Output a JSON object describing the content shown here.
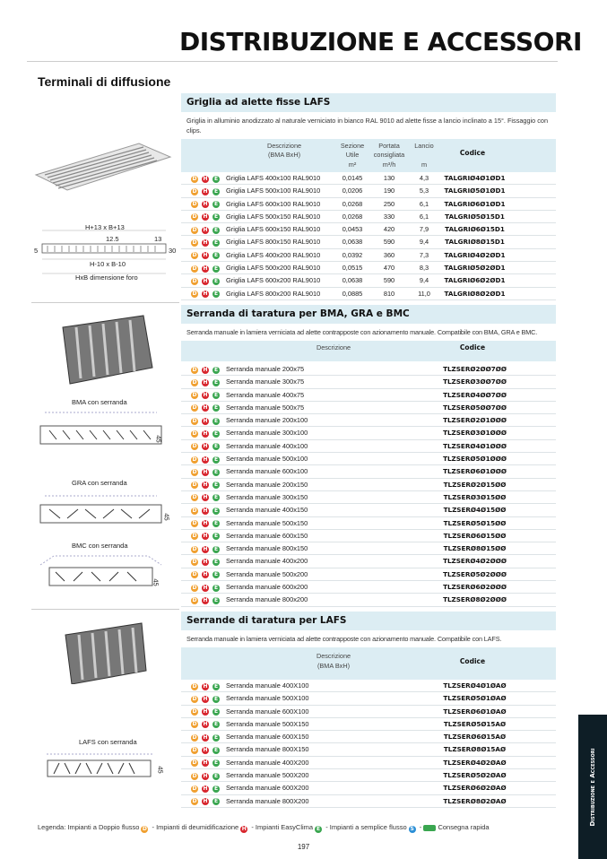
{
  "header": {
    "title": "DISTRIBUZIONE E ACCESSORI",
    "subtitle": "Terminali di diffusione"
  },
  "colors": {
    "accent_bg": "#dcedf3",
    "side_tab": "#0e1e26",
    "doppio": "#f0a030",
    "deumid": "#d8262e",
    "easyclima": "#3aa650",
    "semplice": "#2b8fd6"
  },
  "icons": {
    "D": "D",
    "H": "H",
    "E": "E",
    "S": "S"
  },
  "section1": {
    "title": "Griglia ad alette fisse LAFS",
    "description": "Griglia in alluminio anodizzato al naturale verniciato in bianco RAL 9010 ad alette fisse a lancio inclinato a 15°. Fissaggio con clips.",
    "columns": {
      "descr": "Descrizione",
      "descr2": "(BMA BxH)",
      "sez": "Sezione",
      "sez2": "Utile",
      "sez3": "m²",
      "port": "Portata",
      "port2": "consigliata",
      "port3": "m³/h",
      "lancio": "Lancio",
      "lancio2": "m",
      "codice": "Codice"
    },
    "rows": [
      {
        "descr": "Griglia LAFS 400x100 RAL9010",
        "sez": "0,0145",
        "port": "130",
        "lancio": "4,3",
        "code": "TALGRIØ4Ø1ØD1"
      },
      {
        "descr": "Griglia LAFS 500x100 RAL9010",
        "sez": "0,0206",
        "port": "190",
        "lancio": "5,3",
        "code": "TALGRIØ5Ø1ØD1"
      },
      {
        "descr": "Griglia LAFS 600x100 RAL9010",
        "sez": "0,0268",
        "port": "250",
        "lancio": "6,1",
        "code": "TALGRIØ6Ø1ØD1"
      },
      {
        "descr": "Griglia LAFS 500x150 RAL9010",
        "sez": "0,0268",
        "port": "330",
        "lancio": "6,1",
        "code": "TALGRIØ5Ø15D1"
      },
      {
        "descr": "Griglia LAFS 600x150 RAL9010",
        "sez": "0,0453",
        "port": "420",
        "lancio": "7,9",
        "code": "TALGRIØ6Ø15D1"
      },
      {
        "descr": "Griglia LAFS 800x150 RAL9010",
        "sez": "0,0638",
        "port": "590",
        "lancio": "9,4",
        "code": "TALGRIØ8Ø15D1"
      },
      {
        "descr": "Griglia LAFS 400x200 RAL9010",
        "sez": "0,0392",
        "port": "360",
        "lancio": "7,3",
        "code": "TALGRIØ4Ø2ØD1"
      },
      {
        "descr": "Griglia LAFS 500x200 RAL9010",
        "sez": "0,0515",
        "port": "470",
        "lancio": "8,3",
        "code": "TALGRIØ5Ø2ØD1"
      },
      {
        "descr": "Griglia LAFS 600x200 RAL9010",
        "sez": "0,0638",
        "port": "590",
        "lancio": "9,4",
        "code": "TALGRIØ6Ø2ØD1"
      },
      {
        "descr": "Griglia LAFS 800x200 RAL9010",
        "sez": "0,0885",
        "port": "810",
        "lancio": "11,0",
        "code": "TALGRIØ8Ø2ØD1"
      }
    ]
  },
  "drawing1": {
    "top": "H+13 x B+13",
    "a": "12.5",
    "b": "13",
    "left": "5",
    "right": "30",
    "mid": "H-10 x B-10",
    "bottom": "HxB dimensione foro"
  },
  "section2": {
    "title": "Serranda di taratura per BMA, GRA e BMC",
    "description": "Serranda manuale in lamiera verniciata ad alette contrapposte con azionamento manuale. Compatibile con BMA, GRA e BMC.",
    "columns": {
      "descr": "Descrizione",
      "codice": "Codice"
    },
    "rows": [
      {
        "descr": "Serranda manuale 200x75",
        "code": "TLZSERØ2ØØ7ØØ"
      },
      {
        "descr": "Serranda manuale 300x75",
        "code": "TLZSERØ3ØØ7ØØ"
      },
      {
        "descr": "Serranda manuale 400x75",
        "code": "TLZSERØ4ØØ7ØØ"
      },
      {
        "descr": "Serranda manuale 500x75",
        "code": "TLZSERØ5ØØ7ØØ"
      },
      {
        "descr": "Serranda manuale 200x100",
        "code": "TLZSERØ2Ø1ØØØ"
      },
      {
        "descr": "Serranda manuale 300x100",
        "code": "TLZSERØ3Ø1ØØØ"
      },
      {
        "descr": "Serranda manuale 400x100",
        "code": "TLZSERØ4Ø1ØØØ"
      },
      {
        "descr": "Serranda manuale 500x100",
        "code": "TLZSERØ5Ø1ØØØ"
      },
      {
        "descr": "Serranda manuale 600x100",
        "code": "TLZSERØ6Ø1ØØØ"
      },
      {
        "descr": "Serranda manuale 200x150",
        "code": "TLZSERØ2Ø15ØØ"
      },
      {
        "descr": "Serranda manuale 300x150",
        "code": "TLZSERØ3Ø15ØØ"
      },
      {
        "descr": "Serranda manuale 400x150",
        "code": "TLZSERØ4Ø15ØØ"
      },
      {
        "descr": "Serranda manuale 500x150",
        "code": "TLZSERØ5Ø15ØØ"
      },
      {
        "descr": "Serranda manuale 600x150",
        "code": "TLZSERØ6Ø15ØØ"
      },
      {
        "descr": "Serranda manuale 800x150",
        "code": "TLZSERØ8Ø15ØØ"
      },
      {
        "descr": "Serranda manuale 400x200",
        "code": "TLZSERØ4Ø2ØØØ"
      },
      {
        "descr": "Serranda manuale 500x200",
        "code": "TLZSERØ5Ø2ØØØ"
      },
      {
        "descr": "Serranda manuale 600x200",
        "code": "TLZSERØ6Ø2ØØØ"
      },
      {
        "descr": "Serranda manuale 800x200",
        "code": "TLZSERØ8Ø2ØØØ"
      }
    ]
  },
  "captions2": {
    "bma": "BMA con serranda",
    "gra": "GRA con serranda",
    "bmc": "BMC con serranda",
    "dim": "45"
  },
  "section3": {
    "title": "Serrande di taratura per LAFS",
    "description": "Serranda manuale in lamiera verniciata ad alette contrapposte con azionamento manuale. Compatibile con LAFS.",
    "columns": {
      "descr": "Descrizione",
      "descr2": "(BMA BxH)",
      "codice": "Codice"
    },
    "rows": [
      {
        "descr": "Serranda manuale 400X100",
        "code": "TLZSERØ4Ø1ØAØ"
      },
      {
        "descr": "Serranda manuale 500X100",
        "code": "TLZSERØ5Ø1ØAØ"
      },
      {
        "descr": "Serranda manuale 600X100",
        "code": "TLZSERØ6Ø1ØAØ"
      },
      {
        "descr": "Serranda manuale 500X150",
        "code": "TLZSERØ5Ø15AØ"
      },
      {
        "descr": "Serranda manuale 600X150",
        "code": "TLZSERØ6Ø15AØ"
      },
      {
        "descr": "Serranda manuale 800X150",
        "code": "TLZSERØ8Ø15AØ"
      },
      {
        "descr": "Serranda manuale 400X200",
        "code": "TLZSERØ4Ø2ØAØ"
      },
      {
        "descr": "Serranda manuale 500X200",
        "code": "TLZSERØ5Ø2ØAØ"
      },
      {
        "descr": "Serranda manuale 600X200",
        "code": "TLZSERØ6Ø2ØAØ"
      },
      {
        "descr": "Serranda manuale 800X200",
        "code": "TLZSERØ8Ø2ØAØ"
      }
    ]
  },
  "captions3": {
    "lafs": "LAFS con serranda",
    "dim": "45"
  },
  "legend": {
    "prefix": "Legenda: Impianti a Doppio flusso",
    "deumid": "- Impianti di deumidificazione",
    "easy": "- Impianti EasyClima",
    "semplice": "- Impianti a semplice flusso",
    "rapida": "Consegna rapida",
    "sep": "-"
  },
  "page_number": "197",
  "side_tab": "Distribuzione e Accessori"
}
